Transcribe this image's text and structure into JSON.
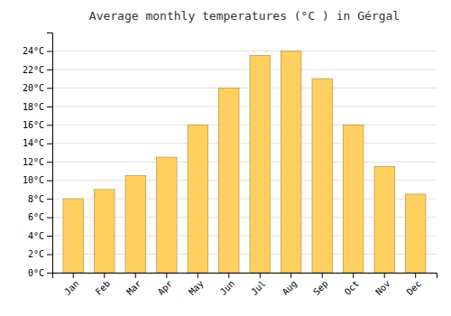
{
  "chart_data": {
    "type": "bar",
    "title": "Average monthly temperatures (°C ) in Gérgal",
    "categories": [
      "Jan",
      "Feb",
      "Mar",
      "Apr",
      "May",
      "Jun",
      "Jul",
      "Aug",
      "Sep",
      "Oct",
      "Nov",
      "Dec"
    ],
    "values": [
      8.0,
      9.0,
      10.5,
      12.5,
      16.0,
      20.0,
      23.5,
      24.0,
      21.0,
      16.0,
      11.5,
      8.5
    ],
    "color": "#FFD060",
    "ylim": [
      0,
      26
    ],
    "yticks": [
      {
        "value": 0,
        "label": "0°C"
      },
      {
        "value": 2,
        "label": "2°C"
      },
      {
        "value": 4,
        "label": "4°C"
      },
      {
        "value": 6,
        "label": "6°C"
      },
      {
        "value": 8,
        "label": "8°C"
      },
      {
        "value": 10,
        "label": "10°C"
      },
      {
        "value": 12,
        "label": "12°C"
      },
      {
        "value": 14,
        "label": "14°C"
      },
      {
        "value": 16,
        "label": "16°C"
      },
      {
        "value": 18,
        "label": "18°C"
      },
      {
        "value": 20,
        "label": "20°C"
      },
      {
        "value": 22,
        "label": "22°C"
      },
      {
        "value": 24,
        "label": "24°C"
      }
    ],
    "grid": true
  }
}
